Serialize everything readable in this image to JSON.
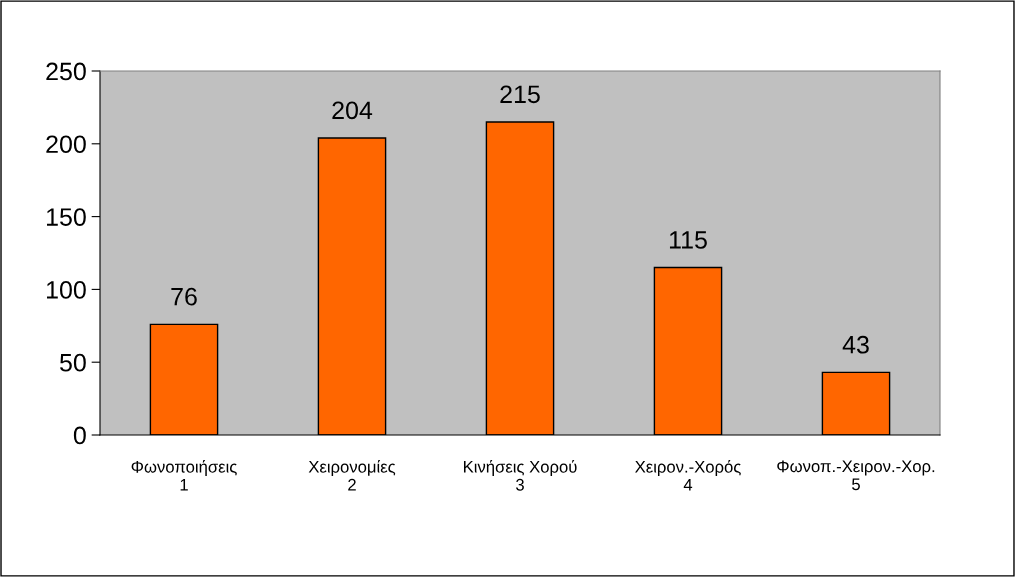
{
  "chart_data": {
    "type": "bar",
    "categories": [
      "Φωνοποιήσεις\n1",
      "Χειρονομίες\n2",
      "Κινήσεις Χορού\n3",
      "Χειρον.-Χορός\n4",
      "Φωνοπ.-Χειρον.-Χορ.\n5"
    ],
    "values": [
      76,
      204,
      215,
      115,
      43
    ],
    "color": "#ff6600",
    "ylim": [
      0,
      250
    ],
    "yticks": [
      0,
      50,
      100,
      150,
      200,
      250
    ],
    "data_labels": true,
    "grid": false,
    "legend": false
  }
}
